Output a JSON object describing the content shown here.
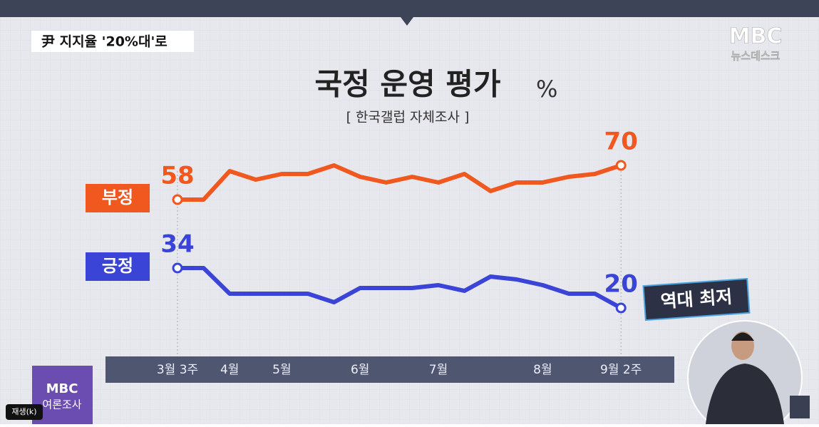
{
  "header": {
    "caption": "尹 지지율 '20%대'로",
    "logo": "MBC",
    "logo_sub": "뉴스데스크"
  },
  "chart_data": {
    "type": "line",
    "title": "국정 운영 평가",
    "unit": "%",
    "subtitle": "[ 한국갤럽 자체조사 ]",
    "categories": [
      "3월 3주",
      null,
      "4월",
      null,
      "5월",
      null,
      null,
      "6월",
      null,
      null,
      "7월",
      null,
      null,
      null,
      "8월",
      null,
      null,
      "9월 2주"
    ],
    "series": [
      {
        "name": "부정",
        "color": "#f0581f",
        "values": [
          58,
          58,
          68,
          65,
          67,
          67,
          70,
          66,
          64,
          66,
          64,
          67,
          61,
          64,
          64,
          66,
          67,
          70
        ]
      },
      {
        "name": "긍정",
        "color": "#3a44d6",
        "values": [
          34,
          34,
          25,
          25,
          25,
          25,
          22,
          27,
          27,
          27,
          28,
          26,
          31,
          30,
          28,
          25,
          25,
          20
        ]
      }
    ],
    "annotation": "역대 최저"
  },
  "footer": {
    "badge_logo": "MBC",
    "badge_text": "여론조사",
    "tooltip": "재생(k)"
  }
}
